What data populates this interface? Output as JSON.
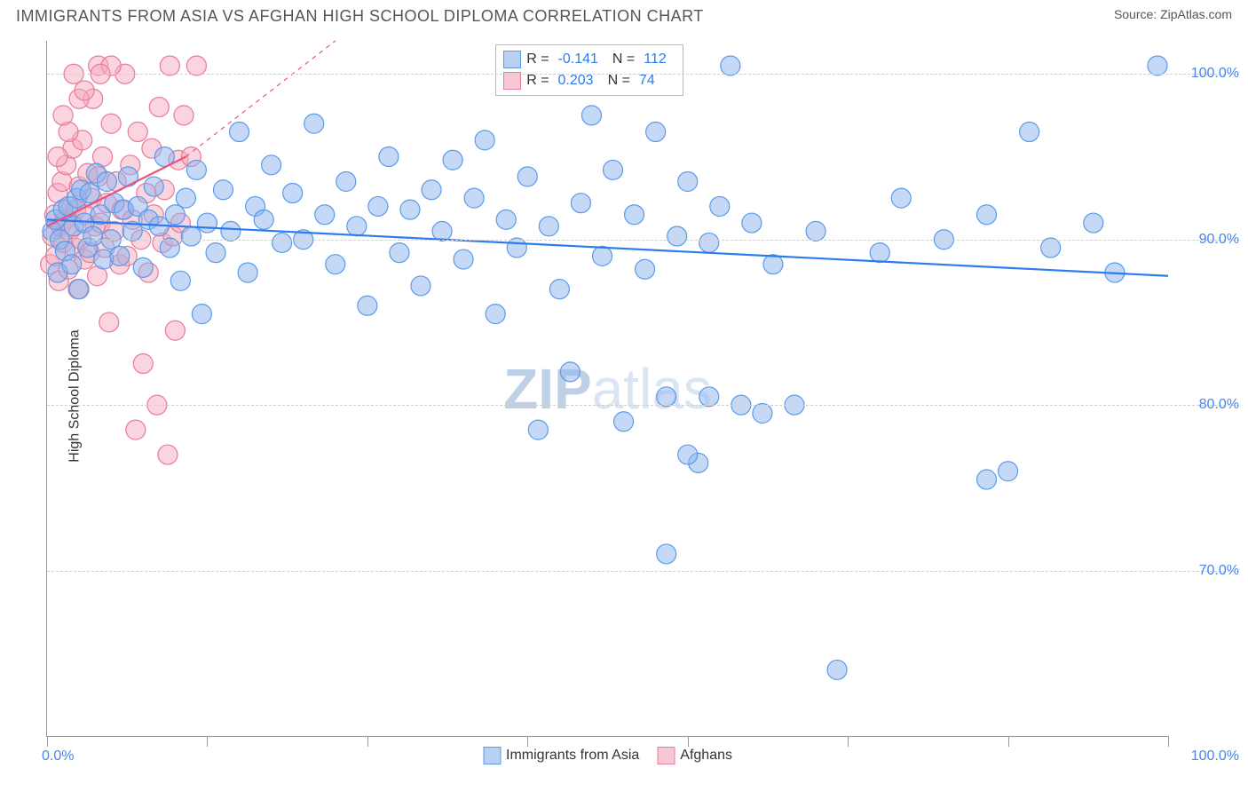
{
  "header": {
    "title": "IMMIGRANTS FROM ASIA VS AFGHAN HIGH SCHOOL DIPLOMA CORRELATION CHART",
    "source": "Source: ZipAtlas.com"
  },
  "axes": {
    "y_label": "High School Diploma",
    "x_min": 0,
    "x_max": 105,
    "y_min": 60,
    "y_max": 102,
    "y_ticks": [
      70,
      80,
      90,
      100
    ],
    "y_tick_labels": [
      "70.0%",
      "80.0%",
      "90.0%",
      "100.0%"
    ],
    "x_tick_positions": [
      0,
      15,
      30,
      45,
      60,
      75,
      90,
      105
    ],
    "x_start_label": "0.0%",
    "x_end_label": "100.0%"
  },
  "watermark": {
    "prefix": "ZIP",
    "suffix": "atlas"
  },
  "legend_top": {
    "rows": [
      {
        "swatch_fill": "#b8d0f2",
        "swatch_stroke": "#5a9be8",
        "r_label": "R =",
        "r_value": "-0.141",
        "n_label": "N =",
        "n_value": "112"
      },
      {
        "swatch_fill": "#f7c7d4",
        "swatch_stroke": "#e87a9a",
        "r_label": "R =",
        "r_value": "0.203",
        "n_label": "N =",
        "n_value": "74"
      }
    ]
  },
  "legend_bottom": {
    "items": [
      {
        "label": "Immigrants from Asia",
        "swatch_fill": "#b8d0f2",
        "swatch_stroke": "#5a9be8"
      },
      {
        "label": "Afghans",
        "swatch_fill": "#f7c7d4",
        "swatch_stroke": "#e87a9a"
      }
    ]
  },
  "series": {
    "blue": {
      "color_fill": "rgba(140,180,240,0.5)",
      "color_stroke": "#5a9be8",
      "marker_radius": 11,
      "trend": {
        "x1": 0,
        "y1": 91.2,
        "x2": 105,
        "y2": 87.8,
        "stroke": "#2d7bf0",
        "width": 2.2,
        "dash": ""
      },
      "points": [
        [
          0.5,
          90.5
        ],
        [
          0.8,
          91.2
        ],
        [
          1.0,
          88.0
        ],
        [
          1.2,
          90.0
        ],
        [
          1.5,
          91.8
        ],
        [
          1.7,
          89.3
        ],
        [
          2.0,
          92.0
        ],
        [
          2.3,
          88.5
        ],
        [
          2.5,
          90.8
        ],
        [
          2.8,
          92.5
        ],
        [
          3.0,
          87.0
        ],
        [
          3.2,
          93.0
        ],
        [
          3.5,
          91.0
        ],
        [
          3.8,
          89.5
        ],
        [
          4.0,
          92.8
        ],
        [
          4.3,
          90.2
        ],
        [
          4.6,
          94.0
        ],
        [
          5.0,
          91.5
        ],
        [
          5.3,
          88.8
        ],
        [
          5.6,
          93.5
        ],
        [
          6.0,
          90.0
        ],
        [
          6.3,
          92.2
        ],
        [
          6.8,
          89.0
        ],
        [
          7.2,
          91.8
        ],
        [
          7.6,
          93.8
        ],
        [
          8.0,
          90.5
        ],
        [
          8.5,
          92.0
        ],
        [
          9.0,
          88.3
        ],
        [
          9.5,
          91.2
        ],
        [
          10.0,
          93.2
        ],
        [
          10.5,
          90.8
        ],
        [
          11.0,
          95.0
        ],
        [
          11.5,
          89.5
        ],
        [
          12.0,
          91.5
        ],
        [
          12.5,
          87.5
        ],
        [
          13.0,
          92.5
        ],
        [
          13.5,
          90.2
        ],
        [
          14.0,
          94.2
        ],
        [
          14.5,
          85.5
        ],
        [
          15.0,
          91.0
        ],
        [
          15.8,
          89.2
        ],
        [
          16.5,
          93.0
        ],
        [
          17.2,
          90.5
        ],
        [
          18.0,
          96.5
        ],
        [
          18.8,
          88.0
        ],
        [
          19.5,
          92.0
        ],
        [
          20.3,
          91.2
        ],
        [
          21.0,
          94.5
        ],
        [
          22.0,
          89.8
        ],
        [
          23.0,
          92.8
        ],
        [
          24.0,
          90.0
        ],
        [
          25.0,
          97.0
        ],
        [
          26.0,
          91.5
        ],
        [
          27.0,
          88.5
        ],
        [
          28.0,
          93.5
        ],
        [
          29.0,
          90.8
        ],
        [
          30.0,
          86.0
        ],
        [
          31.0,
          92.0
        ],
        [
          32.0,
          95.0
        ],
        [
          33.0,
          89.2
        ],
        [
          34.0,
          91.8
        ],
        [
          35.0,
          87.2
        ],
        [
          36.0,
          93.0
        ],
        [
          37.0,
          90.5
        ],
        [
          38.0,
          94.8
        ],
        [
          39.0,
          88.8
        ],
        [
          40.0,
          92.5
        ],
        [
          41.0,
          96.0
        ],
        [
          42.0,
          85.5
        ],
        [
          43.0,
          91.2
        ],
        [
          44.0,
          89.5
        ],
        [
          45.0,
          93.8
        ],
        [
          46.0,
          78.5
        ],
        [
          47.0,
          90.8
        ],
        [
          48.0,
          87.0
        ],
        [
          49.0,
          82.0
        ],
        [
          50.0,
          92.2
        ],
        [
          51.0,
          97.5
        ],
        [
          52.0,
          89.0
        ],
        [
          53.0,
          94.2
        ],
        [
          54.0,
          79.0
        ],
        [
          55.0,
          91.5
        ],
        [
          56.0,
          88.2
        ],
        [
          57.0,
          96.5
        ],
        [
          58.0,
          80.5
        ],
        [
          59.0,
          90.2
        ],
        [
          60.0,
          93.5
        ],
        [
          61.0,
          76.5
        ],
        [
          62.0,
          89.8
        ],
        [
          63.0,
          92.0
        ],
        [
          64.0,
          100.5
        ],
        [
          65.0,
          80.0
        ],
        [
          66.0,
          91.0
        ],
        [
          67.0,
          79.5
        ],
        [
          68.0,
          88.5
        ],
        [
          70.0,
          80.0
        ],
        [
          72.0,
          90.5
        ],
        [
          74.0,
          64.0
        ],
        [
          58.0,
          71.0
        ],
        [
          78.0,
          89.2
        ],
        [
          80.0,
          92.5
        ],
        [
          60.0,
          77.0
        ],
        [
          84.0,
          90.0
        ],
        [
          62.0,
          80.5
        ],
        [
          88.0,
          91.5
        ],
        [
          90.0,
          76.0
        ],
        [
          92.0,
          96.5
        ],
        [
          94.0,
          89.5
        ],
        [
          88.0,
          75.5
        ],
        [
          98.0,
          91.0
        ],
        [
          100.0,
          88.0
        ],
        [
          104.0,
          100.5
        ]
      ]
    },
    "pink": {
      "color_fill": "rgba(245,170,190,0.5)",
      "color_stroke": "#e87a9a",
      "marker_radius": 11,
      "trend_solid": {
        "x1": 0,
        "y1": 90.8,
        "x2": 13,
        "y2": 95.0,
        "stroke": "#e8547c",
        "width": 2.2
      },
      "trend_dash": {
        "x1": 13,
        "y1": 95.0,
        "x2": 27,
        "y2": 102.0,
        "stroke": "#e8547c",
        "width": 1.2,
        "dash": "5,5"
      },
      "points": [
        [
          0.3,
          88.5
        ],
        [
          0.5,
          90.2
        ],
        [
          0.7,
          91.5
        ],
        [
          0.8,
          89.0
        ],
        [
          1.0,
          92.8
        ],
        [
          1.1,
          87.5
        ],
        [
          1.3,
          90.8
        ],
        [
          1.4,
          93.5
        ],
        [
          1.5,
          89.8
        ],
        [
          1.7,
          91.2
        ],
        [
          1.8,
          94.5
        ],
        [
          2.0,
          88.2
        ],
        [
          2.1,
          90.5
        ],
        [
          2.3,
          92.0
        ],
        [
          2.4,
          95.5
        ],
        [
          2.6,
          89.5
        ],
        [
          2.7,
          91.8
        ],
        [
          2.9,
          87.0
        ],
        [
          3.0,
          93.2
        ],
        [
          3.2,
          90.0
        ],
        [
          3.3,
          96.0
        ],
        [
          3.5,
          88.8
        ],
        [
          3.6,
          91.5
        ],
        [
          3.8,
          94.0
        ],
        [
          4.0,
          89.2
        ],
        [
          4.2,
          92.5
        ],
        [
          4.3,
          98.5
        ],
        [
          4.5,
          90.8
        ],
        [
          4.7,
          87.8
        ],
        [
          4.8,
          93.8
        ],
        [
          5.0,
          91.0
        ],
        [
          5.2,
          95.0
        ],
        [
          5.4,
          89.5
        ],
        [
          5.6,
          92.2
        ],
        [
          5.8,
          85.0
        ],
        [
          6.0,
          97.0
        ],
        [
          6.3,
          90.5
        ],
        [
          6.5,
          93.5
        ],
        [
          6.8,
          88.5
        ],
        [
          7.0,
          91.8
        ],
        [
          7.3,
          100.0
        ],
        [
          7.5,
          89.0
        ],
        [
          7.8,
          94.5
        ],
        [
          8.0,
          91.2
        ],
        [
          8.3,
          78.5
        ],
        [
          8.5,
          96.5
        ],
        [
          8.8,
          90.0
        ],
        [
          9.0,
          82.5
        ],
        [
          9.3,
          92.8
        ],
        [
          9.5,
          88.0
        ],
        [
          9.8,
          95.5
        ],
        [
          10.0,
          91.5
        ],
        [
          10.3,
          80.0
        ],
        [
          10.5,
          98.0
        ],
        [
          10.8,
          89.8
        ],
        [
          11.0,
          93.0
        ],
        [
          11.3,
          77.0
        ],
        [
          11.5,
          100.5
        ],
        [
          11.8,
          90.2
        ],
        [
          12.0,
          84.5
        ],
        [
          12.3,
          94.8
        ],
        [
          12.5,
          91.0
        ],
        [
          12.8,
          97.5
        ],
        [
          4.8,
          100.5
        ],
        [
          6.0,
          100.5
        ],
        [
          2.5,
          100.0
        ],
        [
          3.0,
          98.5
        ],
        [
          2.0,
          96.5
        ],
        [
          1.5,
          97.5
        ],
        [
          3.5,
          99.0
        ],
        [
          1.0,
          95.0
        ],
        [
          5.0,
          100.0
        ],
        [
          13.5,
          95.0
        ],
        [
          14.0,
          100.5
        ]
      ]
    }
  },
  "styling": {
    "title_color": "#555555",
    "title_fontsize": 18,
    "axis_label_fontsize": 16,
    "tick_label_color": "#4a86e8",
    "tick_label_fontsize": 16,
    "grid_color": "#d0d0d0",
    "axis_line_color": "#999999",
    "background": "#ffffff"
  }
}
